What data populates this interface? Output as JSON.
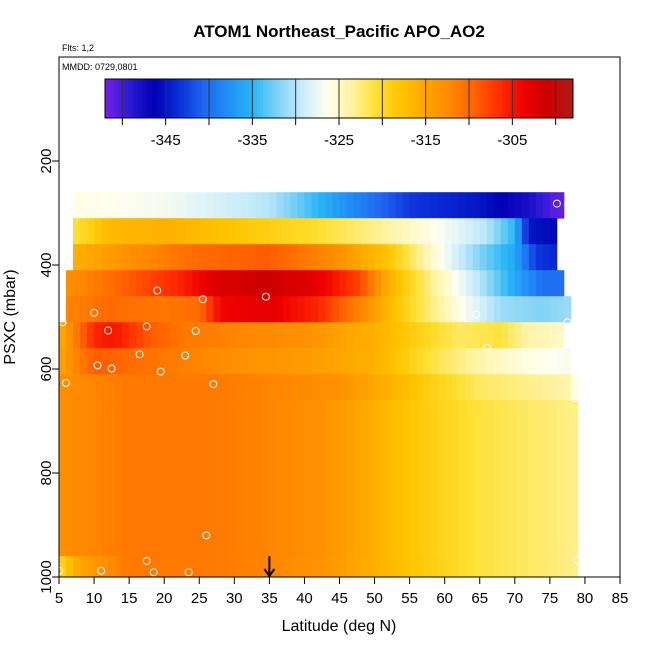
{
  "chart_data": {
    "type": "heatmap",
    "title": "ATOM1 Northeast_Pacific APO_AO2",
    "subtitle_flights": "Flts: 1,2",
    "subtitle_date": "MMDD: 0729,0801",
    "xlabel": "Latitude (deg N)",
    "ylabel": "PSXC (mbar)",
    "xlim": [
      5,
      85
    ],
    "ylim": [
      1000,
      0
    ],
    "x_ticks": [
      "5",
      "10",
      "15",
      "20",
      "25",
      "30",
      "35",
      "40",
      "45",
      "50",
      "55",
      "60",
      "65",
      "70",
      "75",
      "80",
      "85"
    ],
    "y_ticks": [
      "200",
      "400",
      "600",
      "800",
      "1000"
    ],
    "colorbar": {
      "range": [
        -352,
        -298
      ],
      "tick_labels": [
        "-345",
        "-335",
        "-325",
        "-315",
        "-305"
      ],
      "tick_values": [
        -345,
        -335,
        -325,
        -315,
        -305
      ],
      "colors": [
        "#7b1fe8",
        "#2a1ad6",
        "#0000b4",
        "#0a2fd8",
        "#1f66f0",
        "#1f8ff5",
        "#28b6f5",
        "#7fd2f5",
        "#c9ecfb",
        "#ffffee",
        "#fff3a0",
        "#ffe033",
        "#ffc400",
        "#ffa600",
        "#ff8800",
        "#ff6200",
        "#ff2e00",
        "#ef0000",
        "#cc0000",
        "#b01c1c"
      ]
    },
    "lat_bins_start": 5,
    "lat_bins_step": 1,
    "pressure_bands": [
      {
        "p_top": 260,
        "p_bottom": 310,
        "lat_start": 7,
        "lat_end": 77,
        "knots": [
          [
            7,
            -326
          ],
          [
            20,
            -327
          ],
          [
            35,
            -330
          ],
          [
            45,
            -337
          ],
          [
            55,
            -343
          ],
          [
            65,
            -345
          ],
          [
            72,
            -348
          ],
          [
            76,
            -351
          ]
        ]
      },
      {
        "p_top": 310,
        "p_bottom": 360,
        "lat_start": 7,
        "lat_end": 76,
        "knots": [
          [
            7,
            -321
          ],
          [
            12,
            -317
          ],
          [
            20,
            -316
          ],
          [
            30,
            -318
          ],
          [
            40,
            -320
          ],
          [
            50,
            -323
          ],
          [
            58,
            -326
          ],
          [
            66,
            -330
          ],
          [
            70,
            -335
          ],
          [
            72,
            -345
          ],
          [
            76,
            -346
          ]
        ]
      },
      {
        "p_top": 360,
        "p_bottom": 410,
        "lat_start": 7,
        "lat_end": 76,
        "knots": [
          [
            7,
            -316
          ],
          [
            15,
            -313
          ],
          [
            25,
            -310
          ],
          [
            35,
            -309
          ],
          [
            45,
            -313
          ],
          [
            52,
            -318
          ],
          [
            58,
            -325
          ],
          [
            65,
            -332
          ],
          [
            70,
            -336
          ],
          [
            73,
            -343
          ],
          [
            76,
            -344
          ]
        ]
      },
      {
        "p_top": 410,
        "p_bottom": 460,
        "lat_start": 6,
        "lat_end": 77,
        "knots": [
          [
            6,
            -313
          ],
          [
            15,
            -309
          ],
          [
            22,
            -306
          ],
          [
            28,
            -302
          ],
          [
            35,
            -301
          ],
          [
            42,
            -303
          ],
          [
            48,
            -308
          ],
          [
            52,
            -316
          ],
          [
            58,
            -323
          ],
          [
            65,
            -330
          ],
          [
            70,
            -336
          ],
          [
            74,
            -340
          ],
          [
            77,
            -340
          ]
        ]
      },
      {
        "p_top": 460,
        "p_bottom": 510,
        "lat_start": 6,
        "lat_end": 78,
        "knots": [
          [
            6,
            -312
          ],
          [
            12,
            -310
          ],
          [
            20,
            -311
          ],
          [
            25,
            -310
          ],
          [
            28,
            -304
          ],
          [
            35,
            -303
          ],
          [
            42,
            -306
          ],
          [
            48,
            -312
          ],
          [
            55,
            -320
          ],
          [
            62,
            -326
          ],
          [
            68,
            -331
          ],
          [
            74,
            -332
          ],
          [
            78,
            -331
          ]
        ]
      },
      {
        "p_top": 510,
        "p_bottom": 560,
        "lat_start": 5,
        "lat_end": 77,
        "knots": [
          [
            5,
            -316
          ],
          [
            10,
            -306
          ],
          [
            13,
            -305
          ],
          [
            18,
            -309
          ],
          [
            23,
            -311
          ],
          [
            30,
            -312
          ],
          [
            40,
            -313
          ],
          [
            50,
            -316
          ],
          [
            58,
            -320
          ],
          [
            62,
            -322
          ],
          [
            68,
            -321
          ],
          [
            72,
            -324
          ],
          [
            77,
            -325
          ]
        ]
      },
      {
        "p_top": 560,
        "p_bottom": 610,
        "lat_start": 5,
        "lat_end": 78,
        "knots": [
          [
            5,
            -315
          ],
          [
            10,
            -309
          ],
          [
            15,
            -310
          ],
          [
            20,
            -311
          ],
          [
            30,
            -313
          ],
          [
            40,
            -314
          ],
          [
            50,
            -316
          ],
          [
            58,
            -321
          ],
          [
            65,
            -324
          ],
          [
            72,
            -326
          ],
          [
            78,
            -327
          ]
        ]
      },
      {
        "p_top": 610,
        "p_bottom": 660,
        "lat_start": 5,
        "lat_end": 79,
        "knots": [
          [
            5,
            -313
          ],
          [
            15,
            -311
          ],
          [
            25,
            -311
          ],
          [
            35,
            -312
          ],
          [
            45,
            -313
          ],
          [
            52,
            -316
          ],
          [
            58,
            -319
          ],
          [
            65,
            -322
          ],
          [
            72,
            -323
          ],
          [
            78,
            -324
          ],
          [
            79,
            -328
          ]
        ]
      },
      {
        "p_top": 660,
        "p_bottom": 960,
        "lat_start": 5,
        "lat_end": 79,
        "knots": [
          [
            5,
            -313
          ],
          [
            15,
            -311
          ],
          [
            25,
            -311
          ],
          [
            35,
            -312
          ],
          [
            42,
            -313
          ],
          [
            48,
            -315
          ],
          [
            52,
            -317
          ],
          [
            58,
            -319
          ],
          [
            65,
            -321
          ],
          [
            72,
            -322
          ],
          [
            79,
            -323
          ]
        ]
      },
      {
        "p_top": 960,
        "p_bottom": 1000,
        "lat_start": 5,
        "lat_end": 79,
        "knots": [
          [
            5,
            -320
          ],
          [
            8,
            -315
          ],
          [
            15,
            -311
          ],
          [
            25,
            -311
          ],
          [
            35,
            -312
          ],
          [
            45,
            -314
          ],
          [
            55,
            -318
          ],
          [
            65,
            -321
          ],
          [
            79,
            -323
          ]
        ]
      }
    ],
    "sample_points": [
      [
        7,
        270
      ],
      [
        76,
        282
      ],
      [
        19,
        449
      ],
      [
        25.5,
        466
      ],
      [
        34.5,
        461
      ],
      [
        64.5,
        495
      ],
      [
        10,
        492
      ],
      [
        12,
        526
      ],
      [
        17.5,
        518
      ],
      [
        24.5,
        527
      ],
      [
        77.5,
        510
      ],
      [
        66,
        559
      ],
      [
        16.5,
        572
      ],
      [
        23,
        574
      ],
      [
        10.5,
        593
      ],
      [
        12.5,
        599
      ],
      [
        19.5,
        605
      ],
      [
        27,
        629
      ],
      [
        6,
        627
      ],
      [
        78.5,
        656
      ],
      [
        5.5,
        510
      ],
      [
        26,
        920
      ],
      [
        17.5,
        969
      ],
      [
        11,
        988
      ],
      [
        18.5,
        991
      ],
      [
        23.5,
        991
      ],
      [
        79,
        968
      ],
      [
        5,
        988
      ]
    ],
    "arrow_marker": {
      "x": 35,
      "y_from": 960,
      "y_to": 1000
    },
    "grid": false,
    "legend_placement": "top"
  }
}
